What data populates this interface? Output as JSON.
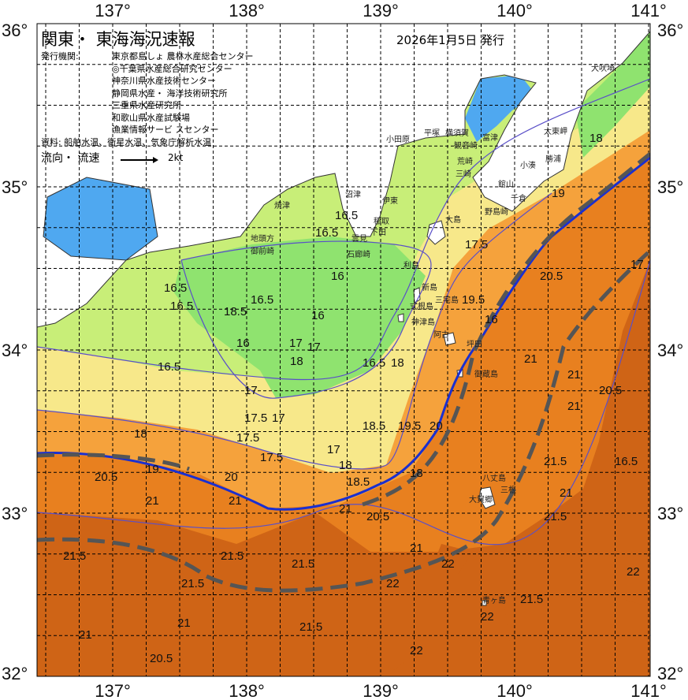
{
  "header": {
    "title": "関東・ 東海海況速報",
    "issue_date": "2026年1月5日 発行",
    "issuer_label": "発行機関:",
    "issuers": [
      "東京都島しょ 農林水産総合センター",
      "◎千葉県水産総合研究センター",
      "神奈川県水産技術センター",
      "静岡県水産・ 海洋技術研究所",
      "三重県水産研究所",
      "和歌山県水産試験場",
      "漁業情報サービ スセンター"
    ],
    "source": "資料: 船舶水温、衛星水温、気象庁解析水温",
    "flow_label": "流向・ 流速",
    "flow_scale": "2kt"
  },
  "axes": {
    "longitude_ticks": [
      "137°",
      "138°",
      "139°",
      "140°",
      "141°"
    ],
    "latitude_ticks": [
      "36°",
      "35°",
      "34°",
      "33°",
      "32°"
    ]
  },
  "colors": {
    "land": "#ffffff",
    "sea_22": "#cf6416",
    "sea_21": "#e8801f",
    "sea_20": "#f5a23c",
    "sea_18": "#f7e88a",
    "sea_17": "#c8ee78",
    "sea_16": "#8fe36f",
    "sea_14": "#4fa8f0",
    "kuroshio_line": "#1a2fd0",
    "current_axis": "#555555"
  },
  "places": [
    "犬吠埼",
    "太東岬",
    "勝浦",
    "小湊",
    "千倉",
    "館山",
    "野島崎",
    "富津",
    "観音崎",
    "横須賀",
    "平塚",
    "小田原",
    "荒崎",
    "三崎",
    "伊東",
    "稲取",
    "下田",
    "雲見",
    "石廊崎",
    "沼津",
    "焼津",
    "地頭方",
    "御前崎",
    "大島",
    "利島",
    "新島",
    "式根島",
    "神津島",
    "三宅島",
    "坪田",
    "阿古",
    "御蔵島",
    "八丈島",
    "三根",
    "大賀郷",
    "青ヶ島"
  ],
  "contour_labels": [
    "16.5",
    "16.5",
    "16.5",
    "16.5",
    "16",
    "16",
    "16",
    "16.5",
    "17",
    "16.5",
    "17",
    "16.5",
    "17",
    "17.5",
    "17",
    "18",
    "17.5",
    "17",
    "18",
    "18.5",
    "19.5",
    "20",
    "19",
    "18",
    "17.5",
    "18.5",
    "20",
    "20.5",
    "21",
    "21",
    "21",
    "21.5",
    "21.5",
    "21.5",
    "21.5",
    "21",
    "20.5",
    "21",
    "21.5",
    "22",
    "22",
    "22",
    "22",
    "21.5",
    "21",
    "20.5",
    "21.5",
    "22",
    "18",
    "19.5",
    "20.5",
    "21",
    "21",
    "20.5",
    "21",
    "21.5",
    "21",
    "16.5",
    "17",
    "18",
    "19",
    "17.5",
    "16",
    "18",
    "18.5"
  ]
}
